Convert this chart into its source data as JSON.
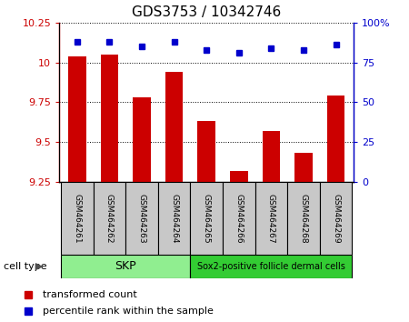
{
  "title": "GDS3753 / 10342746",
  "samples": [
    "GSM464261",
    "GSM464262",
    "GSM464263",
    "GSM464264",
    "GSM464265",
    "GSM464266",
    "GSM464267",
    "GSM464268",
    "GSM464269"
  ],
  "red_values": [
    10.04,
    10.05,
    9.78,
    9.94,
    9.63,
    9.32,
    9.57,
    9.43,
    9.79
  ],
  "blue_values": [
    88,
    88,
    85,
    88,
    83,
    81,
    84,
    83,
    86
  ],
  "ylim_left": [
    9.25,
    10.25
  ],
  "ylim_right": [
    0,
    100
  ],
  "yticks_left": [
    9.25,
    9.5,
    9.75,
    10.0,
    10.25
  ],
  "yticks_right": [
    0,
    25,
    50,
    75,
    100
  ],
  "ytick_labels_left": [
    "9.25",
    "9.5",
    "9.75",
    "10",
    "10.25"
  ],
  "ytick_labels_right": [
    "0",
    "25",
    "50",
    "75",
    "100%"
  ],
  "group1_label": "SKP",
  "group2_label": "Sox2-positive follicle dermal cells",
  "group1_indices": [
    0,
    1,
    2,
    3
  ],
  "group2_indices": [
    4,
    5,
    6,
    7,
    8
  ],
  "cell_type_label": "cell type",
  "legend_red_label": "transformed count",
  "legend_blue_label": "percentile rank within the sample",
  "bar_color": "#cc0000",
  "dot_color": "#0000cc",
  "group1_color": "#90ee90",
  "group2_color": "#33cc33",
  "bg_color": "#c8c8c8",
  "grid_color": "#000000",
  "bar_width": 0.55
}
